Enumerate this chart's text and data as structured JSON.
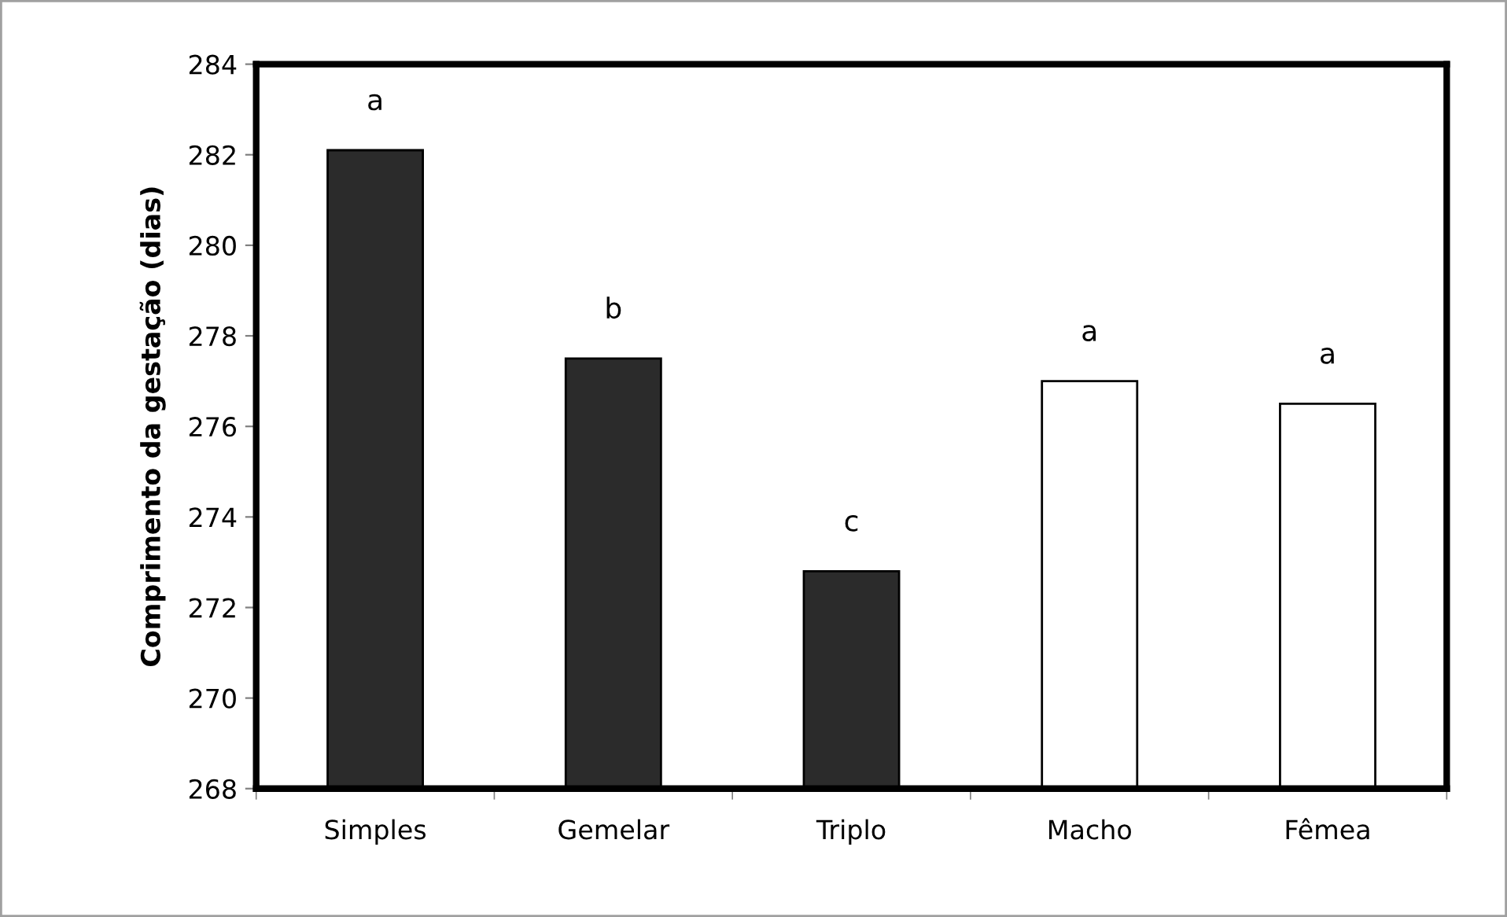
{
  "chart_data": {
    "type": "bar",
    "ylabel": "Comprimento da gestação (dias)",
    "categories": [
      "Simples",
      "Gemelar",
      "Triplo",
      "Macho",
      "Fêmea"
    ],
    "values": [
      282.1,
      277.5,
      272.8,
      277.0,
      276.5
    ],
    "colors": [
      "#2b2b2b",
      "#2b2b2b",
      "#2b2b2b",
      "#ffffff",
      "#ffffff"
    ],
    "ylim": [
      268,
      284
    ],
    "yticks": [
      268,
      270,
      272,
      274,
      276,
      278,
      280,
      282,
      284
    ],
    "grid": false,
    "annotations": [
      "a",
      "b",
      "c",
      "a",
      "a"
    ]
  }
}
